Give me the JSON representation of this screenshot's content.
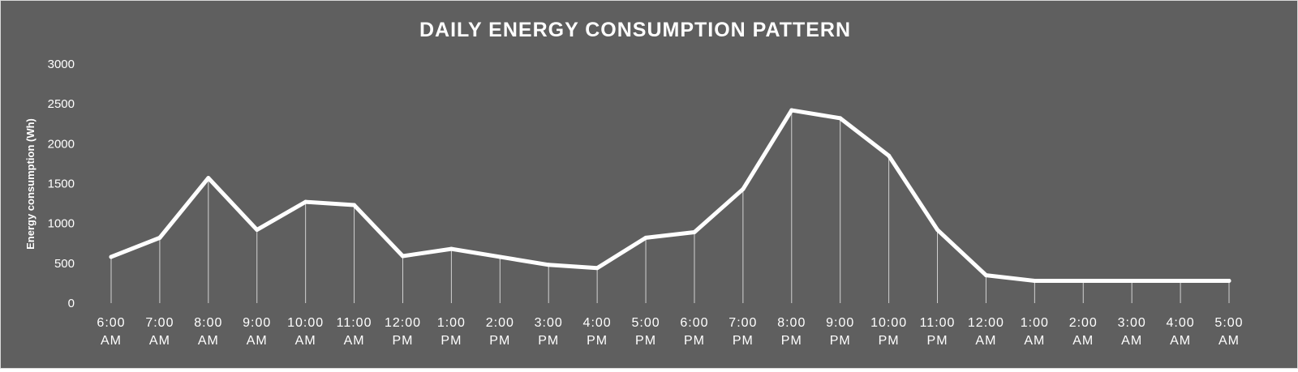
{
  "chart_data": {
    "type": "line",
    "title": "DAILY ENERGY CONSUMPTION PATTERN",
    "xlabel": "",
    "ylabel": "Energy consumption (Wh)",
    "ylim": [
      0,
      3000
    ],
    "yticks": [
      0,
      500,
      1000,
      1500,
      2000,
      2500,
      3000
    ],
    "grid": false,
    "drop_lines": true,
    "line_color": "#ffffff",
    "background_color": "#5f5f5f",
    "categories": [
      "6:00 AM",
      "7:00 AM",
      "8:00 AM",
      "9:00 AM",
      "10:00 AM",
      "11:00 AM",
      "12:00 PM",
      "1:00 PM",
      "2:00 PM",
      "3:00 PM",
      "4:00 PM",
      "5:00 PM",
      "6:00 PM",
      "7:00 PM",
      "8:00 PM",
      "9:00 PM",
      "10:00 PM",
      "11:00 PM",
      "12:00 AM",
      "1:00 AM",
      "2:00 AM",
      "3:00 AM",
      "4:00 AM",
      "5:00 AM"
    ],
    "series": [
      {
        "values": [
          580,
          820,
          1570,
          920,
          1270,
          1230,
          590,
          680,
          580,
          480,
          440,
          820,
          890,
          1430,
          2420,
          2320,
          1850,
          920,
          350,
          280,
          280,
          280,
          280,
          280
        ]
      }
    ]
  }
}
